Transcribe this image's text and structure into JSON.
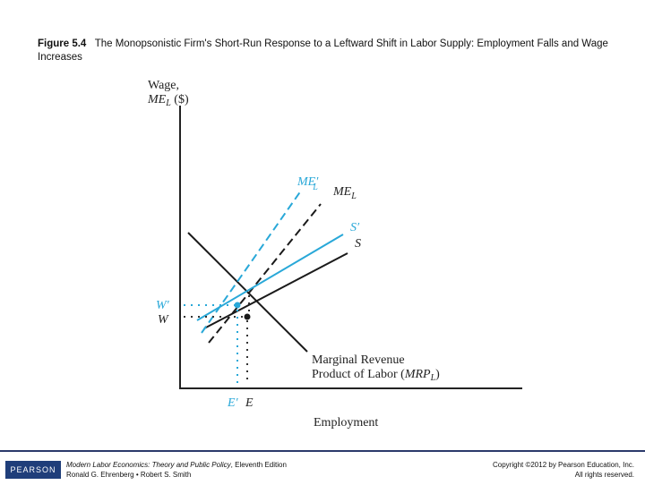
{
  "caption": {
    "figure_number": "Figure 5.4",
    "title": "The Monopsonistic Firm's Short-Run Response to a Leftward Shift in Labor Supply: Employment Falls and Wage Increases"
  },
  "diagram": {
    "y_axis_label_line1": "Wage,",
    "y_axis_label_line2": "ME",
    "y_axis_label_sub": "L",
    "y_axis_label_unit": " ($)",
    "x_axis_label": "Employment",
    "label_me_prime": "ME′",
    "label_me_prime_sub": "L",
    "label_me": "ME",
    "label_me_sub": "L",
    "label_s_prime": "S′",
    "label_s": "S",
    "label_w_prime": "W′",
    "label_w": "W",
    "label_e_prime": "E′",
    "label_e": "E",
    "mrp_line1": "Marginal Revenue",
    "mrp_line2": "Product of Labor (",
    "mrp_abbrev": "MRP",
    "mrp_sub": "L",
    "mrp_close": ")",
    "colors": {
      "original": "#1a1a1a",
      "shifted": "#29a8d8"
    }
  },
  "footer": {
    "logo_text": "PEARSON",
    "book_title": "Modern Labor Economics: Theory and Public Policy",
    "book_edition": ", Eleventh Edition",
    "authors": "Ronald G. Ehrenberg • Robert S. Smith",
    "copyright_line1": "Copyright ©2012 by Pearson Education, Inc.",
    "copyright_line2": "All rights reserved."
  }
}
